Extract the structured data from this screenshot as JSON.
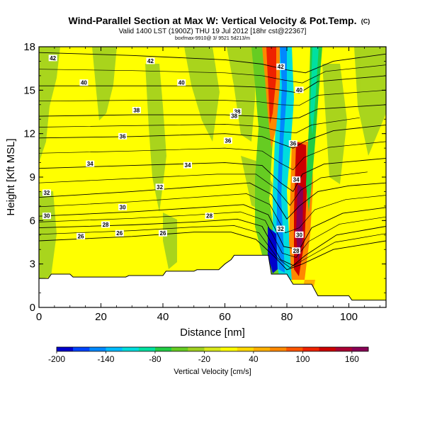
{
  "chart_data": {
    "type": "heatmap",
    "title": "Wind-Parallel Section at Max W: Vertical Velocity & Pot.Temp.",
    "title_suffix": "(C)",
    "subtitle": "Valid 1400 LST (1900Z) THU 19 Jul 2012 [18hr cst@22367]",
    "subtitle2": "boxfmax-9910@ 3/ 9521 5d213/m",
    "xlabel": "Distance [nm]",
    "ylabel": "Height [Kft MSL]",
    "xlim": [
      0,
      112
    ],
    "ylim": [
      0,
      18
    ],
    "x_ticks": [
      0,
      20,
      40,
      60,
      80,
      100
    ],
    "y_ticks": [
      0,
      3,
      6,
      9,
      12,
      15,
      18
    ],
    "colorbar": {
      "label": "Vertical Velocity [cm/s]",
      "tick_labels": [
        "-200",
        "-140",
        "-80",
        "-20",
        "40",
        "100",
        "160"
      ],
      "tick_values": [
        -200,
        -140,
        -80,
        -20,
        40,
        100,
        160
      ],
      "range": [
        -200,
        180
      ],
      "colors": [
        "#0000cc",
        "#0044ff",
        "#0088ff",
        "#00bbff",
        "#00dddd",
        "#00e0a0",
        "#22cc44",
        "#66cc22",
        "#a0d020",
        "#d8e81a",
        "#ffff00",
        "#ffd800",
        "#ffb000",
        "#ff8800",
        "#ff5500",
        "#ee2200",
        "#cc0000",
        "#aa0033",
        "#880055"
      ]
    },
    "terrain": [
      [
        0,
        2
      ],
      [
        3,
        2
      ],
      [
        4,
        2.3
      ],
      [
        10,
        2.3
      ],
      [
        11,
        2.1
      ],
      [
        28,
        2.1
      ],
      [
        29,
        2.2
      ],
      [
        40,
        2.2
      ],
      [
        41,
        2.5
      ],
      [
        50,
        2.5
      ],
      [
        51,
        2.6
      ],
      [
        58,
        2.6
      ],
      [
        60,
        3.0
      ],
      [
        62,
        3.3
      ],
      [
        63,
        3.6
      ],
      [
        74,
        3.6
      ],
      [
        75,
        2.3
      ],
      [
        80,
        2.3
      ],
      [
        82,
        1.6
      ],
      [
        88,
        1.6
      ],
      [
        90,
        0.8
      ],
      [
        100,
        0.8
      ],
      [
        101,
        0.5
      ],
      [
        112,
        0.5
      ]
    ],
    "theta_contours": [
      {
        "label": "26",
        "pts": [
          [
            0,
            4.6
          ],
          [
            30,
            4.9
          ],
          [
            50,
            5.2
          ],
          [
            62,
            5.2
          ],
          [
            70,
            4.7
          ],
          [
            76,
            3.5
          ],
          [
            80,
            2.6
          ],
          [
            85,
            3.0
          ],
          [
            95,
            4.0
          ],
          [
            112,
            4.6
          ]
        ],
        "label_at": [
          26,
          5.1
        ]
      },
      {
        "label": "28",
        "pts": [
          [
            0,
            5.5
          ],
          [
            30,
            5.7
          ],
          [
            50,
            5.9
          ],
          [
            64,
            6.1
          ],
          [
            72,
            5.6
          ],
          [
            78,
            3.3
          ],
          [
            82,
            2.9
          ],
          [
            86,
            3.6
          ],
          [
            96,
            5.0
          ],
          [
            112,
            5.6
          ]
        ],
        "label_at": [
          83,
          3.9
        ]
      },
      {
        "label": "30",
        "pts": [
          [
            0,
            6.3
          ],
          [
            30,
            6.6
          ],
          [
            52,
            6.9
          ],
          [
            66,
            7.1
          ],
          [
            74,
            6.4
          ],
          [
            79,
            4.2
          ],
          [
            84,
            4.0
          ],
          [
            88,
            5.5
          ],
          [
            98,
            6.5
          ],
          [
            112,
            6.9
          ]
        ],
        "label_at": [
          84,
          5.0
        ]
      },
      {
        "label": "32",
        "pts": [
          [
            0,
            7.6
          ],
          [
            30,
            8.0
          ],
          [
            55,
            8.4
          ],
          [
            68,
            8.6
          ],
          [
            75,
            7.8
          ],
          [
            80,
            6.1
          ],
          [
            84,
            7.0
          ],
          [
            90,
            8.0
          ],
          [
            100,
            8.4
          ],
          [
            112,
            8.6
          ]
        ],
        "label_at": [
          78,
          5.4
        ]
      },
      {
        "label": "34",
        "pts": [
          [
            0,
            9.6
          ],
          [
            30,
            9.8
          ],
          [
            60,
            10.0
          ],
          [
            72,
            9.8
          ],
          [
            78,
            8.6
          ],
          [
            82,
            8.0
          ],
          [
            85,
            9.2
          ],
          [
            92,
            9.9
          ],
          [
            112,
            10.3
          ]
        ],
        "label_at": [
          83,
          8.8
        ]
      },
      {
        "label": "36",
        "pts": [
          [
            0,
            11.7
          ],
          [
            30,
            11.8
          ],
          [
            60,
            12.0
          ],
          [
            72,
            11.8
          ],
          [
            78,
            11.3
          ],
          [
            82,
            11.0
          ],
          [
            86,
            11.5
          ],
          [
            95,
            12.2
          ],
          [
            112,
            12.6
          ]
        ],
        "label_at": [
          82,
          11.3
        ]
      },
      {
        "label": "38",
        "pts": [
          [
            0,
            13.2
          ],
          [
            30,
            13.3
          ],
          [
            60,
            13.3
          ],
          [
            70,
            13.2
          ],
          [
            78,
            13.0
          ],
          [
            84,
            13.1
          ],
          [
            90,
            13.7
          ],
          [
            112,
            14.0
          ]
        ],
        "label_at": [
          63,
          13.2
        ]
      },
      {
        "label": "40",
        "pts": [
          [
            0,
            15.3
          ],
          [
            30,
            15.3
          ],
          [
            60,
            15.3
          ],
          [
            72,
            15.2
          ],
          [
            78,
            15.0
          ],
          [
            84,
            14.8
          ],
          [
            90,
            15.6
          ],
          [
            112,
            16.0
          ]
        ],
        "label_at": [
          84,
          15.0
        ]
      },
      {
        "label": "42",
        "pts": [
          [
            0,
            17.6
          ],
          [
            30,
            17.4
          ],
          [
            60,
            17.1
          ],
          [
            72,
            16.8
          ],
          [
            80,
            16.4
          ],
          [
            86,
            16.2
          ],
          [
            95,
            17.0
          ],
          [
            112,
            17.5
          ]
        ],
        "label_at": [
          78,
          16.6
        ]
      }
    ],
    "contour_labels": [
      {
        "label": "42",
        "x": 4.5,
        "y": 17.2
      },
      {
        "label": "42",
        "x": 36,
        "y": 17.0
      },
      {
        "label": "40",
        "x": 14.5,
        "y": 15.5
      },
      {
        "label": "40",
        "x": 46,
        "y": 15.5
      },
      {
        "label": "38",
        "x": 31.5,
        "y": 13.6
      },
      {
        "label": "38",
        "x": 64,
        "y": 13.5
      },
      {
        "label": "36",
        "x": 27,
        "y": 11.8
      },
      {
        "label": "36",
        "x": 61,
        "y": 11.5
      },
      {
        "label": "34",
        "x": 16.5,
        "y": 9.9
      },
      {
        "label": "34",
        "x": 48,
        "y": 9.8
      },
      {
        "label": "32",
        "x": 2.5,
        "y": 7.9
      },
      {
        "label": "32",
        "x": 39,
        "y": 8.3
      },
      {
        "label": "30",
        "x": 2.5,
        "y": 6.3
      },
      {
        "label": "30",
        "x": 27,
        "y": 6.9
      },
      {
        "label": "28",
        "x": 21.5,
        "y": 5.7
      },
      {
        "label": "28",
        "x": 55,
        "y": 6.3
      },
      {
        "label": "26",
        "x": 13.5,
        "y": 4.9
      },
      {
        "label": "26",
        "x": 40,
        "y": 5.1
      }
    ]
  }
}
